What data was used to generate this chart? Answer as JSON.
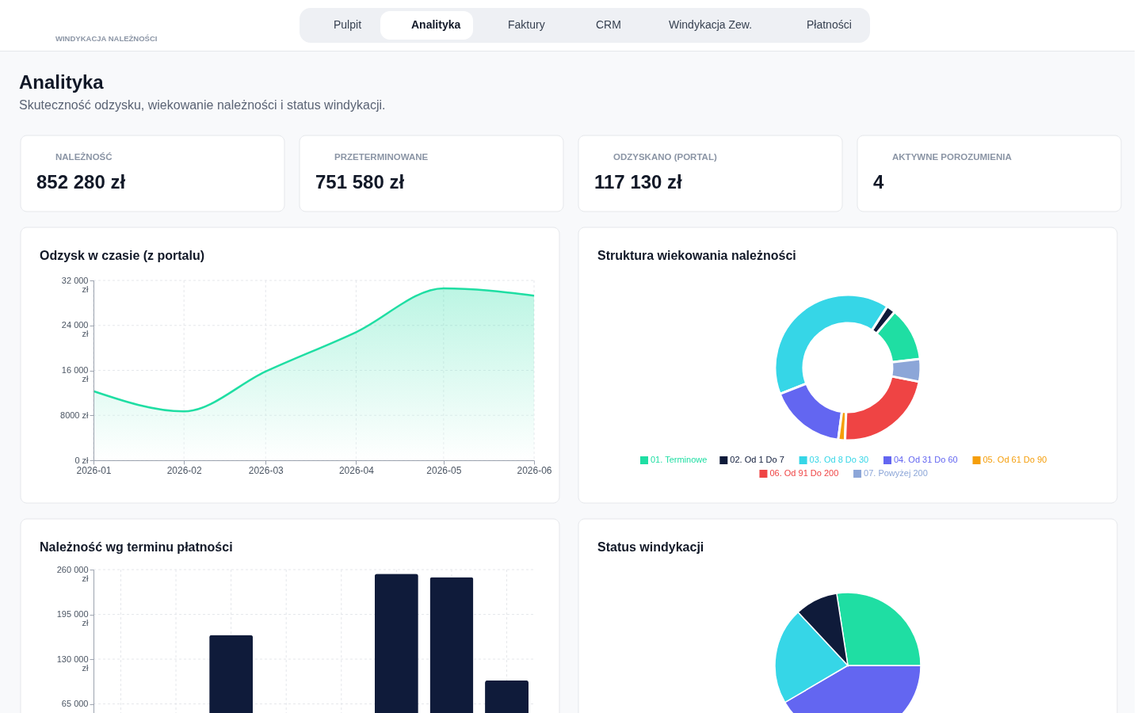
{
  "chart_data": [
    {
      "type": "other",
      "title": "Analityka",
      "subtitle": "Skuteczność odzysku, wiekowanie należności i status windykacji.",
      "annotations": [
        "WINDYKACJA NALEŻNOŚCI",
        "Pulpit",
        "Analityka",
        "Faktury",
        "CRM",
        "Windykacja Zew.",
        "Płatności"
      ]
    },
    {
      "type": "other",
      "title": "NALEŻNOŚĆ",
      "annotations": [
        "852 280 zł"
      ]
    },
    {
      "type": "other",
      "title": "PRZETERMINOWANE",
      "annotations": [
        "751 580 zł"
      ]
    },
    {
      "type": "other",
      "title": "ODZYSKANO (PORTAL)",
      "annotations": [
        "117 130 zł"
      ]
    },
    {
      "type": "other",
      "title": "AKTYWNE POROZUMIENIA",
      "annotations": [
        "4"
      ]
    },
    {
      "type": "area",
      "title": "Odzysk w czasie (z portalu)",
      "x": [
        "2026-01",
        "2026-02",
        "2026-03",
        "2026-04",
        "2026-05",
        "2026-06"
      ],
      "values": [
        12300,
        8700,
        15800,
        22800,
        30600,
        29300
      ],
      "color": "#1fdea3",
      "xlim": [
        "2026-01",
        "2026-06"
      ],
      "xticks": [
        "2026-01",
        "2026-02",
        "2026-03",
        "2026-04",
        "2026-05",
        "2026-06"
      ],
      "ylim": [
        0,
        32000
      ],
      "yticks": [
        {
          "value": 0,
          "label": "0 zł"
        },
        {
          "value": 8000,
          "label": "8000 zł"
        },
        {
          "value": 16000,
          "label": "16 000 zł"
        },
        {
          "value": 24000,
          "label": "24 000 zł"
        },
        {
          "value": 32000,
          "label": "32 000 zł"
        }
      ],
      "grid": true
    },
    {
      "type": "donut",
      "title": "Struktura wiekowania należności",
      "categories": [
        "01. Terminowe",
        "02. Od 1 Do 7",
        "03. Od 8 Do 30",
        "04. Od 31 Do 60",
        "05. Od 61 Do 90",
        "06. Od 91 Do 200",
        "07. Powyżej 200"
      ],
      "values": [
        12,
        2,
        40,
        17,
        1.5,
        22.5,
        5
      ],
      "colors": [
        "#1fdea3",
        "#0f1b3a",
        "#36d6e7",
        "#6366f1",
        "#f59e0b",
        "#ef4444",
        "#8ca6d8"
      ],
      "legend": "bottom"
    },
    {
      "type": "bar",
      "title": "Należność wg terminu płatności",
      "categories": [
        null,
        null,
        null,
        null,
        null,
        null,
        null,
        null
      ],
      "values": [
        null,
        null,
        165000,
        null,
        null,
        254000,
        249000,
        99000
      ],
      "color": "#0f1b3a",
      "ylim": [
        0,
        260000
      ],
      "yticks": [
        {
          "value": 65000,
          "label": "65 000"
        },
        {
          "value": 130000,
          "label": "130 000 zł"
        },
        {
          "value": 195000,
          "label": "195 000 zł"
        },
        {
          "value": 260000,
          "label": "260 000 zł"
        }
      ],
      "grid": true
    },
    {
      "type": "pie",
      "title": "Status windykacji",
      "categories": [
        null,
        null,
        null,
        null
      ],
      "values": [
        27.5,
        41.5,
        21.5,
        9.5
      ],
      "colors": [
        "#1fdea3",
        "#6366f1",
        "#36d6e7",
        "#0f1b3a"
      ]
    }
  ]
}
